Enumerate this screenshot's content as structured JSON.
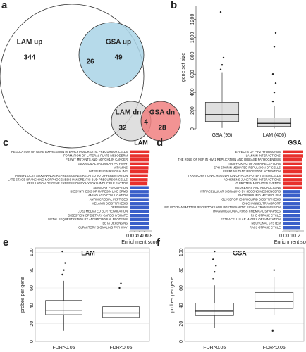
{
  "chart_data": [
    {
      "type": "venn",
      "panel": "a",
      "circles": [
        {
          "label": "LAM up",
          "count": 344,
          "color": "#ffffff"
        },
        {
          "label": "GSA up",
          "count": 49,
          "color": "#a9d4e6"
        },
        {
          "label": "LAM dn",
          "count": 32,
          "color": "#d9d9d9"
        },
        {
          "label": "GSA dn",
          "count": 28,
          "color": "#f08080"
        }
      ],
      "overlaps": [
        26,
        4
      ]
    },
    {
      "type": "box",
      "panel": "b",
      "ylabel": "gene set size",
      "categories": [
        "GSA (95)",
        "LAM (406)"
      ],
      "color": "#d9d9d9",
      "boxes": [
        {
          "whislo": 10,
          "q1": 80,
          "med": 155,
          "q3": 290,
          "whishi": 620,
          "outliers": [
            650,
            700,
            780,
            1280
          ]
        },
        {
          "whislo": 5,
          "q1": 25,
          "med": 60,
          "q3": 120,
          "whishi": 250,
          "outliers": [
            300,
            400,
            500,
            600,
            900,
            1050
          ]
        }
      ],
      "ylim": [
        0,
        1350
      ],
      "yticks": [
        0,
        200,
        400,
        600,
        800,
        1000,
        1200
      ],
      "grid": false
    },
    {
      "type": "bar",
      "panel": "c",
      "title": "LAM",
      "xlabel": "Enrichment score",
      "categories": [
        "REGULATION OF GENE EXPRESSION IN EARLY PANCREATIC PRECURSOR CELLS",
        "FORMATION OF LATERAL PLATE MESODERM",
        "FBXW7 MUTANTS AND NOTCH1 IN CANCER",
        "ENDOSOMAL VACUOLAR PATHWAY",
        "VITAMINS",
        "INTERLEUKIN 9 SIGNALING",
        "POU5F1 OCT4 SOX2 NANOG REPRESS GENES RELATED TO DIFFERENTIATION",
        "LATE STAGE BRANCHING MORPHOGENESIS PANCREATIC BUD PRECURSOR CELLS",
        "REGULATION OF GENE EXPRESSION BY HYPOXIA INDUCIBLE FACTOR",
        "SENSORY PERCEPTION",
        "BIOSYNTHESIS OF MARESIN LIKE SPMS",
        "AMINO ACID CONJUGATION",
        "ANTIMICROBIAL PEPTIDES",
        "MELANIN BIOSYNTHESIS",
        "DEFENSINS",
        "CD22 MEDIATED BCR REGULATION",
        "DIGESTION OF DIETARY CARBOHYDRATE",
        "METAL SEQUESTRATION BY ANTIMICROBIAL PROTEINS",
        "BETA DEFENSINS",
        "OLFACTORY SIGNALING PATHWAY"
      ],
      "values": [
        0.82,
        0.8,
        0.79,
        0.78,
        0.77,
        0.76,
        0.75,
        0.74,
        0.73,
        0.78,
        0.78,
        0.78,
        0.78,
        0.79,
        0.79,
        0.79,
        0.79,
        0.79,
        0.79,
        0.8
      ],
      "colors": [
        "#e8302c",
        "#e8302c",
        "#e8302c",
        "#e8302c",
        "#e8302c",
        "#e8302c",
        "#e8302c",
        "#e8302c",
        "#e8302c",
        "#3a5fc9",
        "#3a5fc9",
        "#3a5fc9",
        "#3a5fc9",
        "#3a5fc9",
        "#3a5fc9",
        "#3a5fc9",
        "#3a5fc9",
        "#3a5fc9",
        "#3a5fc9",
        "#3a5fc9"
      ],
      "xlim": [
        0,
        0.9
      ],
      "xticks": [
        {
          "value": 0,
          "label": "0.0"
        },
        {
          "value": 0.2,
          "label": "0.2"
        },
        {
          "value": 0.4,
          "label": "0.4"
        },
        {
          "value": 0.6,
          "label": "0.6"
        },
        {
          "value": 0.8,
          "label": "0.8"
        }
      ]
    },
    {
      "type": "bar",
      "panel": "d",
      "title": "GSA",
      "xlabel": "Enrichment score",
      "categories": [
        "EFFECTS OF PIP2 HYDROLYSIS",
        "LAMININ INTERACTIONS",
        "THE ROLE OF NEF IN HIV 1 REPLICATION AND DISEASE PATHOGENESIS",
        "TRAFFICKING OF AMPA RECEPTORS",
        "EPH EPHRIN MEDIATED REPULSION OF CELLS",
        "FGFR1 MUTANT RECEPTOR ACTIVATION",
        "TRANSCRIPTIONAL REGULATION OF PLURIPOTENT STEM CELLS",
        "ADHERENS JUNCTIONS INTERACTIONS",
        "G PROTEIN MEDIATED EVENTS",
        "NEUREXINS AND NEUROLIGINS",
        "INTRACELLULAR SIGNALING BY SECOND MESSENGERS",
        "PHOSPHOLIPID METABOLISM",
        "GLYCEROPHOSPHOLIPID BIOSYNTHESIS",
        "ION CHANNEL TRANSPORT",
        "NEUROTRANSMITTER RECEPTORS AND POSTSYNAPTIC SIGNAL TRANSMISSION",
        "TRANSMISSION ACROSS CHEMICAL SYNAPSES",
        "RHO GTPASE CYCLE",
        "EXTRACELLULAR MATRIX ORGANIZATION",
        "NEURONAL SYSTEM",
        "RAC1 GTPASE CYCLE"
      ],
      "values": [
        0.29,
        0.29,
        0.28,
        0.28,
        0.28,
        0.28,
        0.28,
        0.28,
        0.27,
        0.27,
        0.25,
        0.25,
        0.25,
        0.25,
        0.25,
        0.25,
        0.25,
        0.25,
        0.25,
        0.25
      ],
      "colors": [
        "#e8302c",
        "#e8302c",
        "#e8302c",
        "#e8302c",
        "#e8302c",
        "#e8302c",
        "#e8302c",
        "#e8302c",
        "#e8302c",
        "#e8302c",
        "#3a5fc9",
        "#3a5fc9",
        "#3a5fc9",
        "#3a5fc9",
        "#3a5fc9",
        "#3a5fc9",
        "#3a5fc9",
        "#3a5fc9",
        "#3a5fc9",
        "#3a5fc9"
      ],
      "xlim": [
        0,
        0.3
      ],
      "xticks": [
        {
          "value": 0,
          "label": "0.0"
        },
        {
          "value": 0.1,
          "label": "0.1"
        },
        {
          "value": 0.2,
          "label": "0.2"
        }
      ]
    },
    {
      "type": "box",
      "panel": "e",
      "title": "LAM",
      "ylabel": "probes per gene",
      "categories": [
        "FDR>0.05",
        "FDR<0.05"
      ],
      "color": "#ffffff",
      "boxes": [
        {
          "whislo": 12,
          "q1": 30,
          "med": 35,
          "q3": 46,
          "whishi": 68,
          "outliers": [
            75,
            80,
            88,
            101
          ]
        },
        {
          "whislo": 14,
          "q1": 27,
          "med": 32,
          "q3": 39,
          "whishi": 55,
          "outliers": [
            60,
            65
          ]
        }
      ],
      "ylim": [
        0,
        105
      ],
      "yticks": [
        0,
        20,
        40,
        60,
        80,
        100
      ],
      "grid": true
    },
    {
      "type": "box",
      "panel": "f",
      "title": "GSA",
      "ylabel": "probes per gene",
      "categories": [
        "FDR>0.05",
        "FDR<0.05"
      ],
      "color": "#ffffff",
      "boxes": [
        {
          "whislo": 15,
          "q1": 29,
          "med": 34,
          "q3": 43,
          "whishi": 63,
          "outliers": [
            70,
            78,
            85,
            92,
            101
          ]
        },
        {
          "whislo": 30,
          "q1": 37,
          "med": 45,
          "q3": 55,
          "whishi": 72,
          "outliers": [
            12,
            80
          ]
        }
      ],
      "ylim": [
        0,
        105
      ],
      "yticks": [
        0,
        20,
        40,
        60,
        80,
        100
      ],
      "grid": true
    }
  ]
}
